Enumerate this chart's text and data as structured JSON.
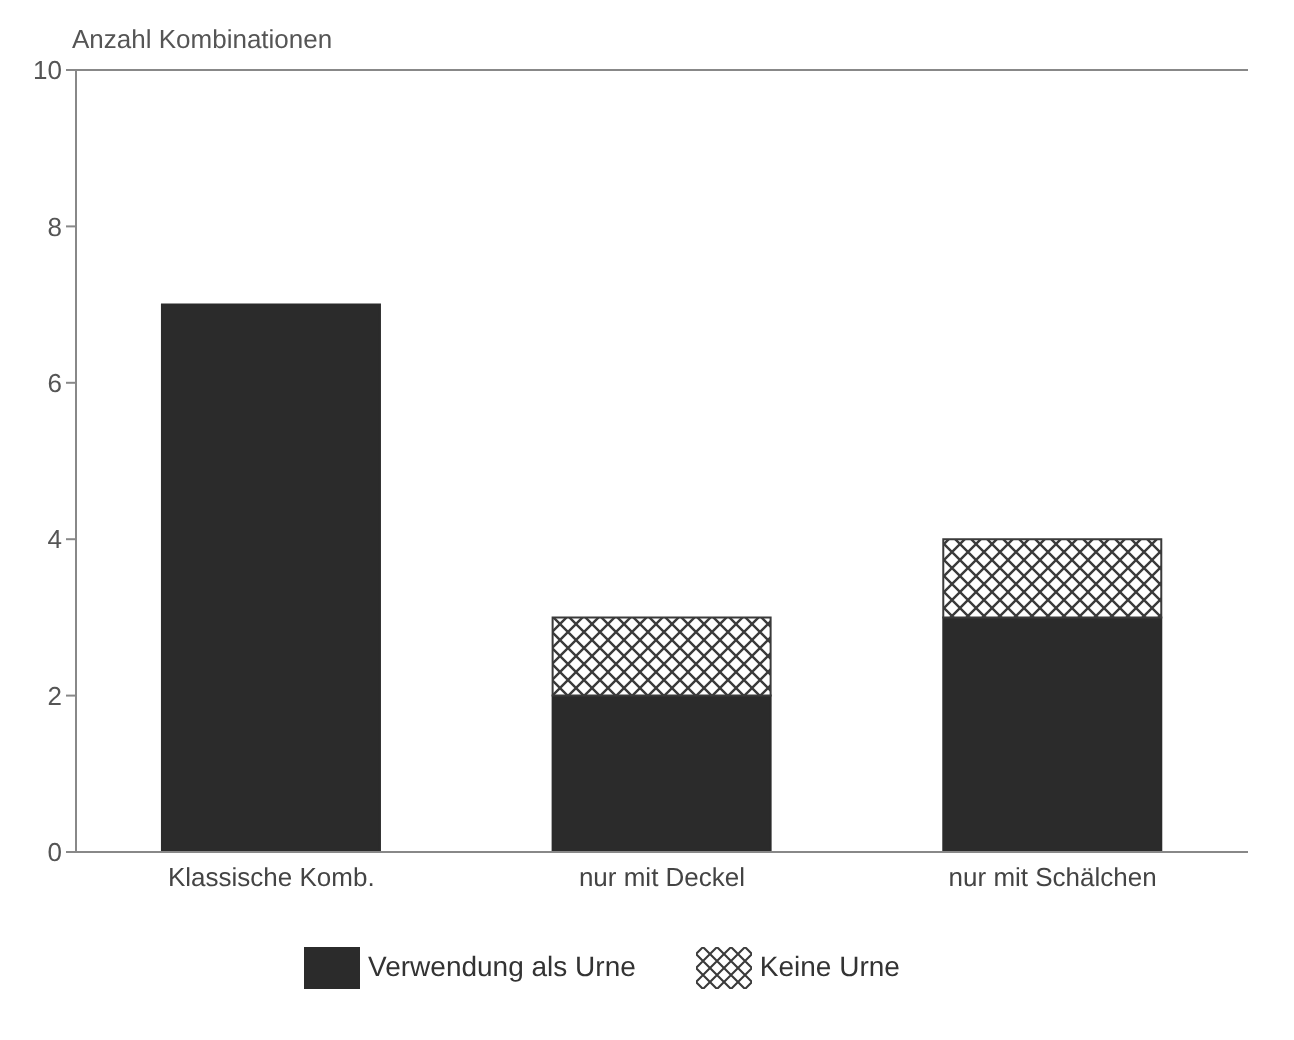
{
  "chart_data": {
    "type": "bar",
    "ylabel": "Anzahl Kombinationen",
    "categories": [
      "Klassische Komb.",
      "nur mit Deckel",
      "nur mit Schälchen"
    ],
    "stacked": true,
    "series": [
      {
        "name": "Verwendung als Urne",
        "color": "#2b2b2b",
        "values": [
          7,
          2,
          3
        ]
      },
      {
        "name": "Keine Urne",
        "color": "#3a3a3a",
        "values": [
          0,
          1,
          1
        ]
      }
    ],
    "ylim": [
      0,
      10
    ],
    "yticks": [
      0,
      2,
      4,
      6,
      8,
      10
    ],
    "legend": "bottom"
  }
}
